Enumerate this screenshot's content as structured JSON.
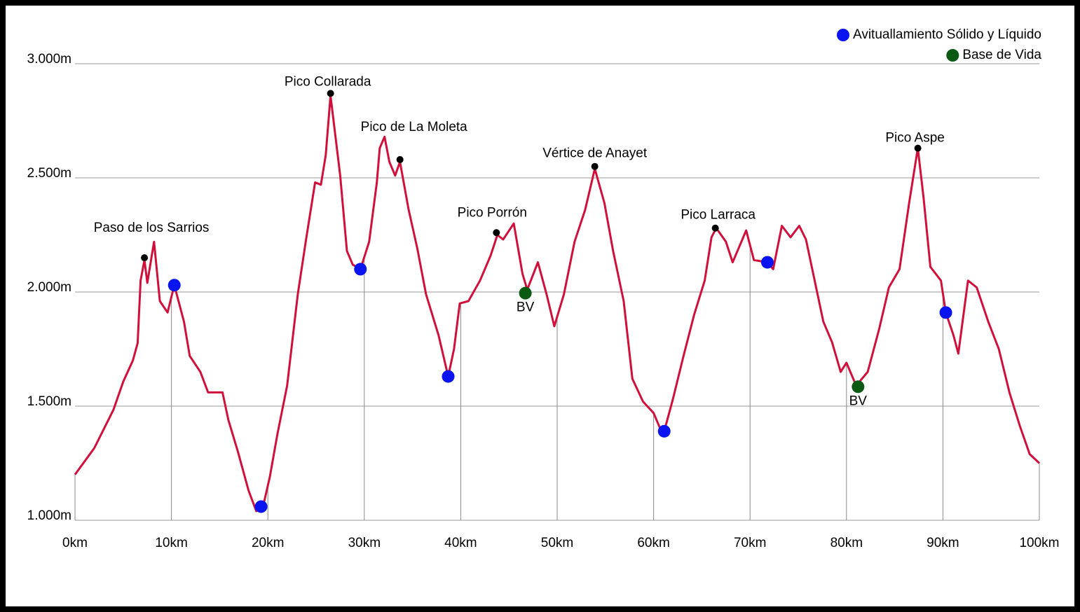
{
  "chart_data": {
    "type": "line",
    "legend": [
      {
        "name": "Avituallamiento Sólido y Líquido",
        "color": "#0a14f0"
      },
      {
        "name": "Base de Vida",
        "color": "#0b5a14"
      }
    ],
    "legend_position": "top-right",
    "xlim": [
      0,
      100
    ],
    "xticks": [
      {
        "value": 0,
        "label": "0km"
      },
      {
        "value": 10,
        "label": "10km"
      },
      {
        "value": 20,
        "label": "20km"
      },
      {
        "value": 30,
        "label": "30km"
      },
      {
        "value": 40,
        "label": "40km"
      },
      {
        "value": 50,
        "label": "50km"
      },
      {
        "value": 60,
        "label": "60km"
      },
      {
        "value": 70,
        "label": "70km"
      },
      {
        "value": 80,
        "label": "80km"
      },
      {
        "value": 90,
        "label": "90km"
      },
      {
        "value": 100,
        "label": "100km"
      }
    ],
    "ylim": [
      1000,
      3000
    ],
    "yticks": [
      {
        "value": 1000,
        "label": "1.000m"
      },
      {
        "value": 1500,
        "label": "1.500m"
      },
      {
        "value": 2000,
        "label": "2.000m"
      },
      {
        "value": 2500,
        "label": "2.500m"
      },
      {
        "value": 3000,
        "label": "3.000m"
      }
    ],
    "grid": true,
    "series": [
      {
        "color": "#d0103a",
        "x": [
          0,
          2,
          4,
          5,
          6,
          6.5,
          6.8,
          7.2,
          7.5,
          8.2,
          8.8,
          9.6,
          10.3,
          11.3,
          11.9,
          13,
          13.8,
          15.3,
          15.9,
          16.9,
          18,
          18.8,
          19.5,
          20.2,
          21,
          22,
          23.1,
          24,
          24.9,
          25.5,
          26,
          26.5,
          27.5,
          28.2,
          28.8,
          29.6,
          30.5,
          31.3,
          31.6,
          32.1,
          32.6,
          33.2,
          33.7,
          34.6,
          35.5,
          36.4,
          37.7,
          38.7,
          39.3,
          39.9,
          40.8,
          42,
          43.1,
          43.8,
          44.4,
          45.5,
          46.4,
          46.9,
          48,
          48.9,
          49.7,
          50.7,
          51.8,
          52.9,
          53.9,
          54.9,
          55.8,
          56.9,
          57.8,
          58.9,
          60,
          60.7,
          61.1,
          62,
          63.1,
          64.2,
          65.3,
          66,
          66.5,
          67.5,
          68.2,
          69.1,
          69.6,
          70.4,
          71.8,
          72.4,
          73.3,
          74.2,
          75.1,
          75.8,
          76.7,
          77.6,
          78.5,
          79.4,
          80,
          81,
          82.2,
          83.4,
          84.4,
          85.5,
          86.5,
          87.4,
          88,
          88.7,
          89.8,
          90.3,
          91.1,
          91.6,
          92.6,
          93.5,
          94.7,
          95.8,
          96.9,
          98,
          99,
          100
        ],
        "values": [
          1200,
          1316,
          1485,
          1607,
          1700,
          1776,
          2050,
          2140,
          2040,
          2220,
          1960,
          1910,
          2030,
          1870,
          1720,
          1650,
          1560,
          1560,
          1440,
          1300,
          1130,
          1040,
          1060,
          1190,
          1380,
          1590,
          1990,
          2240,
          2480,
          2470,
          2600,
          2860,
          2510,
          2180,
          2120,
          2100,
          2220,
          2480,
          2630,
          2680,
          2570,
          2510,
          2570,
          2360,
          2190,
          1990,
          1810,
          1630,
          1750,
          1950,
          1960,
          2050,
          2160,
          2250,
          2230,
          2300,
          2080,
          2010,
          2130,
          1990,
          1850,
          1990,
          2220,
          2360,
          2540,
          2390,
          2180,
          1960,
          1620,
          1520,
          1470,
          1400,
          1390,
          1530,
          1720,
          1900,
          2050,
          2240,
          2280,
          2220,
          2130,
          2220,
          2270,
          2140,
          2130,
          2100,
          2290,
          2240,
          2290,
          2230,
          2050,
          1870,
          1780,
          1650,
          1690,
          1590,
          1650,
          1840,
          2020,
          2100,
          2390,
          2630,
          2410,
          2110,
          2050,
          1910,
          1810,
          1730,
          2050,
          2020,
          1870,
          1750,
          1560,
          1410,
          1290,
          1250
        ]
      }
    ],
    "peaks": [
      {
        "label": "Paso de los Sarrios",
        "x": 7.2,
        "y": 2150
      },
      {
        "label": "Pico Collarada",
        "x": 26.5,
        "y": 2870
      },
      {
        "label": "Pico de La Moleta",
        "x": 33.7,
        "y": 2580
      },
      {
        "label": "Pico Porrón",
        "x": 43.7,
        "y": 2260
      },
      {
        "label": "Vértice de Anayet",
        "x": 53.9,
        "y": 2550
      },
      {
        "label": "Pico Larraca",
        "x": 66.4,
        "y": 2280
      },
      {
        "label": "Pico Aspe",
        "x": 87.4,
        "y": 2630
      }
    ],
    "aid_stations": [
      {
        "x": 10.3,
        "y": 2030
      },
      {
        "x": 19.3,
        "y": 1060
      },
      {
        "x": 29.6,
        "y": 2100
      },
      {
        "x": 38.7,
        "y": 1630
      },
      {
        "x": 61.1,
        "y": 1390
      },
      {
        "x": 71.8,
        "y": 2130
      },
      {
        "x": 90.3,
        "y": 1910
      }
    ],
    "base_de_vida": [
      {
        "x": 46.7,
        "y": 1995,
        "label": "BV"
      },
      {
        "x": 81.2,
        "y": 1585,
        "label": "BV"
      }
    ]
  }
}
